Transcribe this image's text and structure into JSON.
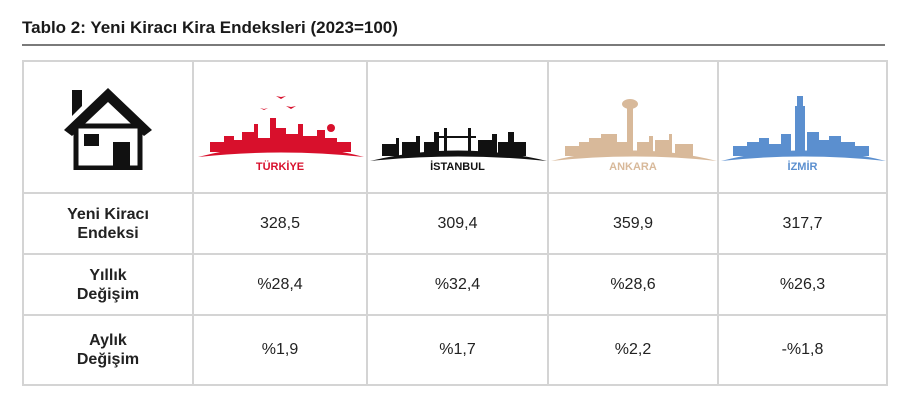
{
  "title": "Tablo 2: Yeni Kiracı Kira Endeksleri (2023=100)",
  "columns": [
    {
      "name": "TÜRKİYE",
      "color": "#d8102c"
    },
    {
      "name": "İSTANBUL",
      "color": "#111111"
    },
    {
      "name": "ANKARA",
      "color": "#d8b99a"
    },
    {
      "name": "İZMİR",
      "color": "#5b8fcf"
    }
  ],
  "house_icon": "house-icon",
  "rows": [
    {
      "label_lines": [
        "Yeni Kiracı",
        "Endeksi"
      ],
      "values": [
        "328,5",
        "309,4",
        "359,9",
        "317,7"
      ]
    },
    {
      "label_lines": [
        "Yıllık",
        "Değişim"
      ],
      "values": [
        "%28,4",
        "%32,4",
        "%28,6",
        "%26,3"
      ]
    },
    {
      "label_lines": [
        "Aylık",
        "Değişim"
      ],
      "values": [
        "%1,9",
        "%1,7",
        "%2,2",
        "-%1,8"
      ]
    }
  ]
}
